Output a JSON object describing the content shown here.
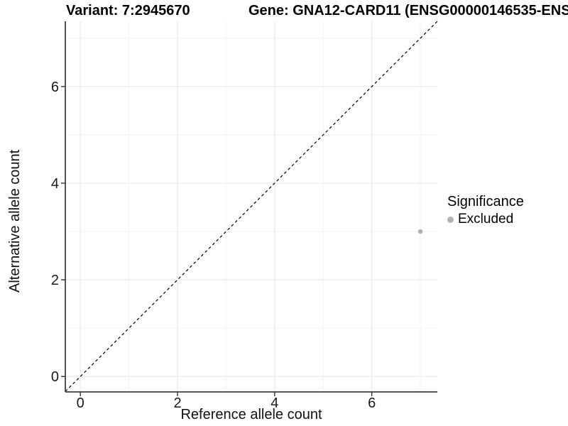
{
  "chart_data": {
    "type": "scatter",
    "variant_title": "Variant: 7:2945670",
    "gene_title": "Gene: GNA12-CARD11 (ENSG00000146535-ENS",
    "xlabel": "Reference allele count",
    "ylabel": "Alternative allele count",
    "xlim": [
      -0.31,
      7.35
    ],
    "ylim": [
      -0.32,
      7.35
    ],
    "x_major_ticks": [
      0,
      2,
      4,
      6
    ],
    "y_major_ticks": [
      0,
      2,
      4,
      6
    ],
    "x_minor_ticks": [
      1,
      3,
      5,
      7
    ],
    "y_minor_ticks": [
      1,
      3,
      5,
      7
    ],
    "grid": true,
    "points": [
      {
        "x": 7,
        "y": 3,
        "series": "Excluded"
      }
    ],
    "reference_line": {
      "slope": 1,
      "intercept": 0,
      "style": "dashed",
      "label": "y = x"
    },
    "legend": {
      "position": "right",
      "title": "Significance",
      "items": [
        {
          "label": "Excluded",
          "color": "#b2b2b2"
        }
      ]
    },
    "colors": {
      "point": "#b2b2b2",
      "axis_line": "#404040",
      "tick_mark": "#333333",
      "tick_label": "#1a1a1a",
      "grid_major": "#e7e7e7",
      "grid_minor": "#f2f2f2",
      "reference_line": "#000000",
      "background": "#ffffff"
    }
  }
}
